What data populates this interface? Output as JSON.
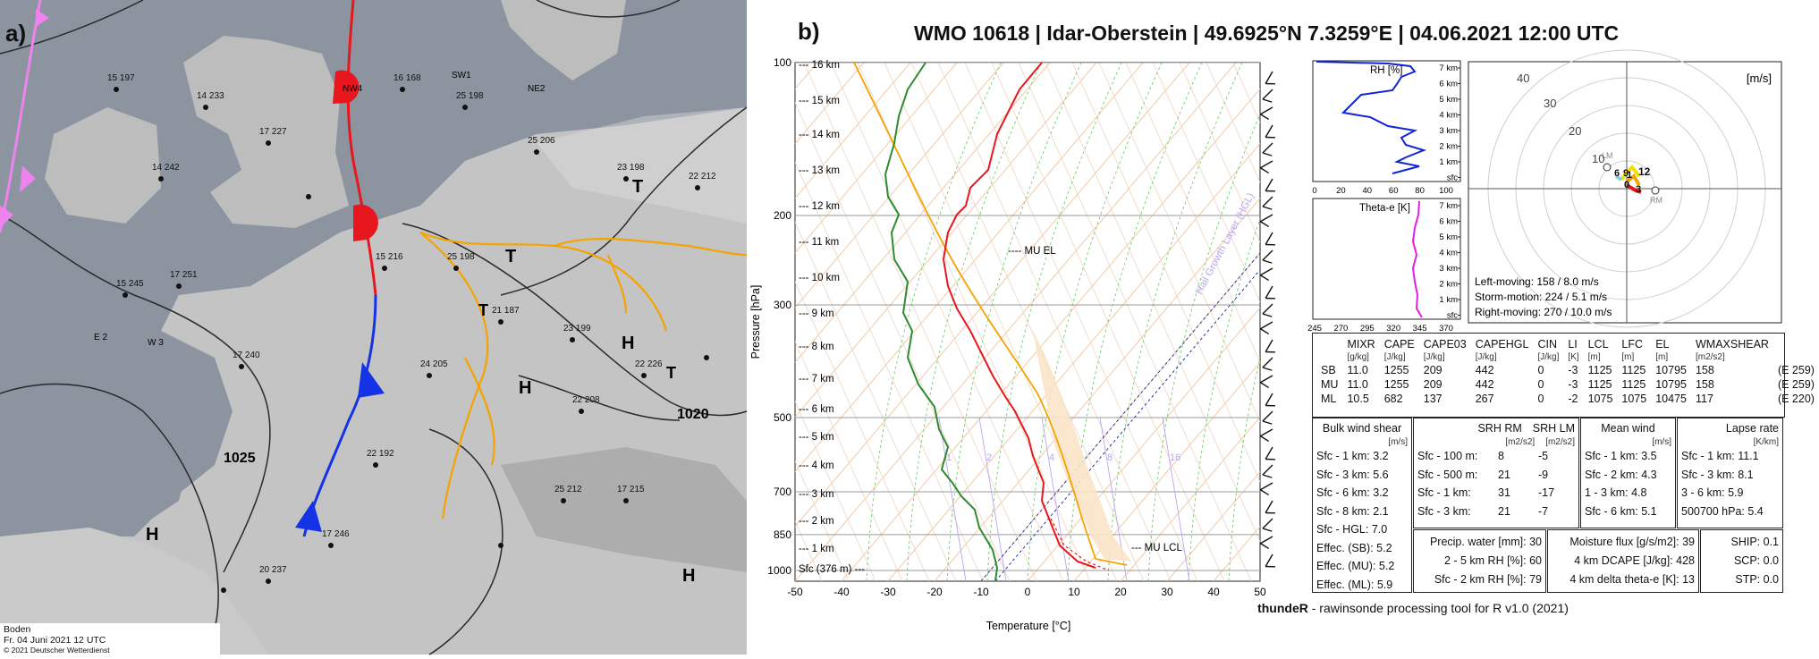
{
  "map": {
    "panel_label": "a)",
    "legend": {
      "line1": "Boden",
      "line2": "Fr. 04 Juni 2021 12 UTC",
      "line3": "© 2021 Deutscher Wetterdienst"
    },
    "isobar_labels": [
      "1025",
      "1020"
    ],
    "pressure_centers": [
      "H",
      "H",
      "H",
      "H",
      "T",
      "T",
      "T",
      "T"
    ],
    "station_samples": [
      "NW4",
      "SW1",
      "NE2",
      "E 2",
      "W 3"
    ],
    "colors": {
      "warm_front": "#e8171d",
      "cold_front": "#1433e6",
      "trough": "#f5a300",
      "occlusion": "#ee82ee",
      "land": "#c8c8c8",
      "sea": "#8c94a0"
    }
  },
  "sounding": {
    "panel_label": "b)",
    "title": "WMO 10618 | Idar-Oberstein | 49.6925°N 7.3259°E | 04.06.2021 12:00 UTC",
    "skewt": {
      "xlabel": "Temperature [°C]",
      "ylabel": "Pressure [hPa]",
      "x_ticks": [
        "-50",
        "-40",
        "-30",
        "-20",
        "-10",
        "0",
        "10",
        "20",
        "30",
        "40",
        "50"
      ],
      "p_ticks": [
        "100",
        "200",
        "300",
        "500",
        "700",
        "850",
        "1000"
      ],
      "height_labels": [
        "16 km",
        "15 km",
        "14 km",
        "13 km",
        "12 km",
        "11 km",
        "10 km",
        "9 km",
        "8 km",
        "7 km",
        "6 km",
        "5 km",
        "4 km",
        "3 km",
        "2 km",
        "1 km"
      ],
      "sfc_label": "Sfc (376 m) ---",
      "mu_el": "---- MU EL",
      "mu_lcl": "--- MU LCL",
      "hail_label": "Hail Growth Layer (HGL)",
      "mixing_ratio_labels": [
        "1",
        "2",
        "4",
        "8",
        "16"
      ]
    },
    "rh_panel": {
      "title": "RH [%]",
      "x_ticks": [
        "0",
        "20",
        "40",
        "60",
        "80",
        "100"
      ],
      "y_ticks": [
        "7 km",
        "6 km",
        "5 km",
        "4 km",
        "3 km",
        "2 km",
        "1 km",
        "sfc"
      ]
    },
    "theta_panel": {
      "title": "Theta-e [K]",
      "x_ticks": [
        "245",
        "270",
        "295",
        "320",
        "345",
        "370"
      ],
      "y_ticks": [
        "7 km",
        "6 km",
        "5 km",
        "4 km",
        "3 km",
        "2 km",
        "1 km",
        "sfc"
      ]
    },
    "hodograph": {
      "units": "[m/s]",
      "rings": [
        "40",
        "30",
        "20",
        "10"
      ],
      "labels": [
        "LM",
        "RM",
        "6",
        "9",
        "12",
        "0",
        "3",
        "1"
      ],
      "left_moving": "Left-moving: 158 / 8.0 m/s",
      "storm_motion": "Storm-motion: 224 / 5.1 m/s",
      "right_moving": "Right-moving: 270 / 10.0 m/s"
    },
    "params_table": {
      "headers": [
        "",
        "MIXR",
        "CAPE",
        "CAPE03",
        "CAPEHGL",
        "CIN",
        "LI",
        "LCL",
        "LFC",
        "EL",
        "WMAXSHEAR"
      ],
      "units": [
        "",
        "[g/kg]",
        "[J/kg]",
        "[J/kg]",
        "[J/kg]",
        "[J/kg]",
        "[K]",
        "[m]",
        "[m]",
        "[m]",
        "[m2/s2]"
      ],
      "rows": [
        [
          "SB",
          "11.0",
          "1255",
          "209",
          "442",
          "0",
          "-3",
          "1125",
          "1125",
          "10795",
          "158",
          "(E 259)"
        ],
        [
          "MU",
          "11.0",
          "1255",
          "209",
          "442",
          "0",
          "-3",
          "1125",
          "1125",
          "10795",
          "158",
          "(E 259)"
        ],
        [
          "ML",
          "10.5",
          "682",
          "137",
          "267",
          "0",
          "-2",
          "1075",
          "1075",
          "10475",
          "117",
          "(E 220)"
        ]
      ]
    },
    "bulk_shear": {
      "title": "Bulk wind shear",
      "units": "[m/s]",
      "rows": [
        "Sfc - 1 km: 3.2",
        "Sfc - 3 km: 5.6",
        "Sfc - 6 km: 3.2",
        "Sfc - 8 km: 2.1",
        "Sfc - HGL: 7.0",
        "Effec. (SB): 5.2",
        "Effec. (MU): 5.2",
        "Effec. (ML): 5.9"
      ]
    },
    "srh": {
      "h1": "SRH RM",
      "h2": "SRH LM",
      "u1": "[m2/s2]",
      "u2": "[m2/s2]",
      "rows": [
        [
          "Sfc - 100 m:",
          "8",
          "-5"
        ],
        [
          "Sfc - 500 m:",
          "21",
          "-9"
        ],
        [
          "Sfc - 1 km:",
          "31",
          "-17"
        ],
        [
          "Sfc - 3 km:",
          "21",
          "-7"
        ]
      ]
    },
    "mean_wind": {
      "title": "Mean wind",
      "units": "[m/s]",
      "rows": [
        "Sfc - 1 km: 3.5",
        "Sfc - 2 km: 4.3",
        "1 - 3 km: 4.8",
        "Sfc - 6 km: 5.1"
      ]
    },
    "lapse_rate": {
      "title": "Lapse rate",
      "units": "[K/km]",
      "rows": [
        "Sfc - 1 km: 11.1",
        "Sfc - 3 km: 8.1",
        "3 - 6 km: 5.9",
        "500700 hPa: 5.4"
      ]
    },
    "moisture": {
      "rows": [
        "Precip. water [mm]: 30",
        "2 - 5 km RH [%]: 60",
        "Sfc - 2 km RH [%]: 79"
      ]
    },
    "moisture_flux": {
      "rows": [
        "Moisture flux [g/s/m2]: 39",
        "4 km DCAPE [J/kg]: 428",
        "4 km delta theta-e [K]: 13"
      ]
    },
    "composites": {
      "rows": [
        "SHIP: 0.1",
        "SCP: 0.0",
        "STP: 0.0"
      ]
    },
    "footer_bold": "thundeR",
    "footer_rest": " - rawinsonde processing tool for R v1.0 (2021)"
  }
}
